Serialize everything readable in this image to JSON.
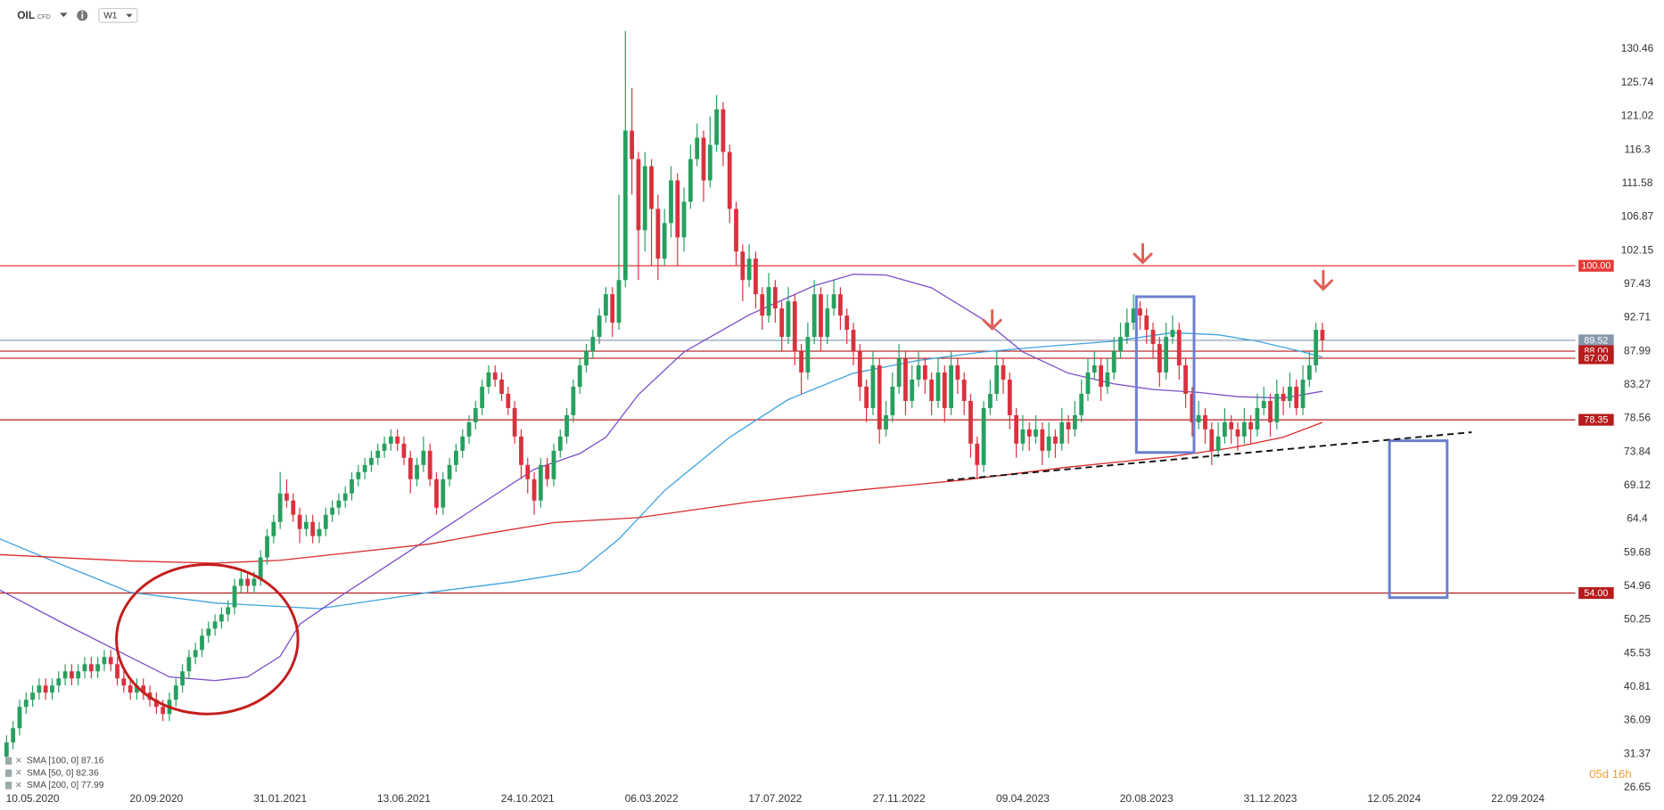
{
  "header": {
    "symbol": "OIL",
    "instrument_type": "CFD",
    "interval": "W1"
  },
  "chart_data": {
    "type": "candlestick",
    "up_color": "#27a05f",
    "down_color": "#d9323f",
    "xlim": [
      -1,
      240
    ],
    "ylim": [
      26.35,
      137.36
    ],
    "xticks": [
      {
        "value": 4,
        "label": "10.05.2020"
      },
      {
        "value": 23,
        "label": "20.09.2020"
      },
      {
        "value": 42,
        "label": "31.01.2021"
      },
      {
        "value": 61,
        "label": "13.06.2021"
      },
      {
        "value": 80,
        "label": "24.10.2021"
      },
      {
        "value": 99,
        "label": "06.03.2022"
      },
      {
        "value": 118,
        "label": "17.07.2022"
      },
      {
        "value": 137,
        "label": "27.11.2022"
      },
      {
        "value": 156,
        "label": "09.04.2023"
      },
      {
        "value": 175,
        "label": "20.08.2023"
      },
      {
        "value": 194,
        "label": "31.12.2023"
      },
      {
        "value": 213,
        "label": "12.05.2024"
      },
      {
        "value": 232,
        "label": "22.09.2024"
      }
    ],
    "yticks": [
      130.46,
      125.74,
      121.02,
      116.3,
      111.58,
      106.87,
      102.15,
      97.43,
      92.71,
      87.99,
      83.27,
      78.56,
      73.84,
      69.12,
      64.4,
      59.68,
      54.96,
      50.25,
      45.53,
      40.81,
      36.09,
      31.37,
      26.65
    ],
    "candles": [
      [
        31,
        34,
        30,
        33
      ],
      [
        33,
        36,
        32,
        35
      ],
      [
        35,
        39,
        34,
        38
      ],
      [
        38,
        40,
        37,
        39
      ],
      [
        39,
        41,
        38,
        40
      ],
      [
        40,
        42,
        39,
        41
      ],
      [
        41,
        42,
        39,
        40
      ],
      [
        40,
        42,
        39,
        41
      ],
      [
        41,
        43,
        40,
        42
      ],
      [
        42,
        44,
        41,
        43
      ],
      [
        43,
        44,
        41,
        42
      ],
      [
        42,
        44,
        41,
        43
      ],
      [
        43,
        45,
        42,
        44
      ],
      [
        44,
        45,
        42,
        43
      ],
      [
        43,
        45,
        42,
        44
      ],
      [
        44,
        46,
        43,
        45
      ],
      [
        45,
        46,
        43,
        44
      ],
      [
        44,
        45,
        41,
        42
      ],
      [
        42,
        43,
        40,
        41
      ],
      [
        41,
        42,
        39,
        40
      ],
      [
        40,
        42,
        39,
        41
      ],
      [
        41,
        42,
        39,
        40
      ],
      [
        40,
        41,
        38,
        39
      ],
      [
        39,
        40,
        37,
        38
      ],
      [
        38,
        39,
        36,
        37
      ],
      [
        37,
        40,
        36,
        39
      ],
      [
        39,
        42,
        38,
        41
      ],
      [
        41,
        44,
        40,
        43
      ],
      [
        43,
        46,
        42,
        45
      ],
      [
        45,
        47,
        44,
        46
      ],
      [
        46,
        49,
        45,
        48
      ],
      [
        48,
        50,
        47,
        49
      ],
      [
        49,
        51,
        48,
        50
      ],
      [
        50,
        52,
        49,
        51
      ],
      [
        51,
        53,
        50,
        52
      ],
      [
        52,
        56,
        51,
        55
      ],
      [
        55,
        57,
        54,
        56
      ],
      [
        56,
        57,
        54,
        55
      ],
      [
        55,
        57,
        54,
        56
      ],
      [
        56,
        60,
        55,
        59
      ],
      [
        59,
        63,
        58,
        62
      ],
      [
        62,
        65,
        61,
        64
      ],
      [
        64,
        71,
        63,
        68
      ],
      [
        68,
        70,
        66,
        67
      ],
      [
        67,
        68,
        64,
        65
      ],
      [
        65,
        66,
        61,
        63
      ],
      [
        63,
        65,
        62,
        64
      ],
      [
        64,
        65,
        61,
        62
      ],
      [
        62,
        64,
        61,
        63
      ],
      [
        63,
        66,
        62,
        65
      ],
      [
        65,
        67,
        64,
        66
      ],
      [
        66,
        68,
        65,
        67
      ],
      [
        67,
        69,
        66,
        68
      ],
      [
        68,
        71,
        67,
        70
      ],
      [
        70,
        72,
        69,
        71
      ],
      [
        71,
        73,
        70,
        72
      ],
      [
        72,
        74,
        71,
        73
      ],
      [
        73,
        75,
        72,
        74
      ],
      [
        74,
        76,
        73,
        75
      ],
      [
        75,
        77,
        74,
        76
      ],
      [
        76,
        77,
        74,
        75
      ],
      [
        75,
        76,
        72,
        73
      ],
      [
        73,
        74,
        68,
        70
      ],
      [
        70,
        73,
        69,
        72
      ],
      [
        72,
        76,
        71,
        74
      ],
      [
        74,
        75,
        69,
        70
      ],
      [
        70,
        71,
        65,
        66
      ],
      [
        66,
        71,
        65,
        70
      ],
      [
        70,
        73,
        69,
        72
      ],
      [
        72,
        75,
        71,
        74
      ],
      [
        74,
        77,
        73,
        76
      ],
      [
        76,
        79,
        75,
        78
      ],
      [
        78,
        81,
        77,
        80
      ],
      [
        80,
        84,
        79,
        83
      ],
      [
        83,
        86,
        82,
        85
      ],
      [
        85,
        86,
        83,
        84
      ],
      [
        84,
        85,
        81,
        82
      ],
      [
        82,
        83,
        79,
        80
      ],
      [
        80,
        81,
        75,
        76
      ],
      [
        76,
        77,
        70,
        72
      ],
      [
        72,
        73,
        68,
        70
      ],
      [
        70,
        71,
        65,
        67
      ],
      [
        67,
        73,
        66,
        72
      ],
      [
        72,
        73,
        69,
        70
      ],
      [
        70,
        75,
        69,
        74
      ],
      [
        74,
        77,
        73,
        76
      ],
      [
        76,
        80,
        75,
        79
      ],
      [
        79,
        84,
        78,
        83
      ],
      [
        83,
        87,
        82,
        86
      ],
      [
        86,
        89,
        85,
        88
      ],
      [
        88,
        91,
        87,
        90
      ],
      [
        90,
        94,
        89,
        93
      ],
      [
        93,
        97,
        92,
        96
      ],
      [
        96,
        97,
        90,
        92
      ],
      [
        92,
        110,
        91,
        98
      ],
      [
        98,
        133,
        97,
        119
      ],
      [
        119,
        125,
        110,
        115
      ],
      [
        115,
        116,
        98,
        105
      ],
      [
        105,
        116,
        102,
        114
      ],
      [
        114,
        115,
        100,
        108
      ],
      [
        108,
        110,
        98,
        101
      ],
      [
        101,
        108,
        100,
        106
      ],
      [
        106,
        114,
        104,
        112
      ],
      [
        112,
        113,
        100,
        104
      ],
      [
        104,
        111,
        102,
        109
      ],
      [
        109,
        117,
        108,
        115
      ],
      [
        115,
        120,
        114,
        118
      ],
      [
        118,
        119,
        109,
        112
      ],
      [
        112,
        121,
        111,
        117
      ],
      [
        117,
        124,
        116,
        122
      ],
      [
        122,
        123,
        114,
        116
      ],
      [
        116,
        117,
        106,
        108
      ],
      [
        108,
        109,
        100,
        102
      ],
      [
        102,
        103,
        95,
        98
      ],
      [
        98,
        103,
        97,
        101
      ],
      [
        101,
        102,
        94,
        96
      ],
      [
        96,
        97,
        91,
        93
      ],
      [
        93,
        99,
        92,
        97
      ],
      [
        97,
        98,
        92,
        94
      ],
      [
        94,
        95,
        88,
        90
      ],
      [
        90,
        97,
        89,
        95
      ],
      [
        95,
        96,
        86,
        88
      ],
      [
        88,
        89,
        82,
        85
      ],
      [
        85,
        92,
        84,
        90
      ],
      [
        90,
        98,
        89,
        96
      ],
      [
        96,
        97,
        88,
        90
      ],
      [
        90,
        96,
        89,
        94
      ],
      [
        94,
        98,
        93,
        96
      ],
      [
        96,
        97,
        91,
        93
      ],
      [
        93,
        94,
        89,
        91
      ],
      [
        91,
        92,
        86,
        88
      ],
      [
        88,
        89,
        81,
        83
      ],
      [
        83,
        84,
        78,
        80
      ],
      [
        80,
        88,
        79,
        86
      ],
      [
        86,
        87,
        75,
        77
      ],
      [
        77,
        81,
        76,
        79
      ],
      [
        79,
        85,
        78,
        83
      ],
      [
        83,
        89,
        82,
        87
      ],
      [
        87,
        88,
        79,
        81
      ],
      [
        81,
        86,
        80,
        84
      ],
      [
        84,
        88,
        83,
        86
      ],
      [
        86,
        87,
        82,
        84
      ],
      [
        84,
        85,
        79,
        81
      ],
      [
        81,
        87,
        80,
        85
      ],
      [
        85,
        86,
        78,
        80
      ],
      [
        80,
        88,
        79,
        86
      ],
      [
        86,
        87,
        82,
        84
      ],
      [
        84,
        85,
        79,
        81
      ],
      [
        81,
        82,
        73,
        75
      ],
      [
        75,
        76,
        70,
        72
      ],
      [
        72,
        81,
        71,
        80
      ],
      [
        80,
        84,
        79,
        82
      ],
      [
        82,
        88,
        81,
        86
      ],
      [
        86,
        87,
        82,
        84
      ],
      [
        84,
        85,
        77,
        79
      ],
      [
        79,
        80,
        73,
        75
      ],
      [
        75,
        79,
        74,
        77
      ],
      [
        77,
        78,
        74,
        76
      ],
      [
        76,
        79,
        75,
        77
      ],
      [
        77,
        78,
        72,
        74
      ],
      [
        74,
        78,
        73,
        76
      ],
      [
        76,
        77,
        73,
        75
      ],
      [
        75,
        80,
        74,
        78
      ],
      [
        78,
        79,
        75,
        77
      ],
      [
        77,
        81,
        76,
        79
      ],
      [
        79,
        84,
        78,
        82
      ],
      [
        82,
        87,
        81,
        85
      ],
      [
        85,
        88,
        84,
        86
      ],
      [
        86,
        87,
        81,
        83
      ],
      [
        83,
        87,
        82,
        85
      ],
      [
        85,
        90,
        84,
        88
      ],
      [
        88,
        92,
        87,
        90
      ],
      [
        90,
        94,
        89,
        92
      ],
      [
        92,
        96,
        91,
        94
      ],
      [
        94,
        95,
        91,
        93
      ],
      [
        93,
        94,
        89,
        91
      ],
      [
        91,
        92,
        87,
        89
      ],
      [
        89,
        90,
        83,
        85
      ],
      [
        85,
        92,
        84,
        90
      ],
      [
        90,
        93,
        89,
        91
      ],
      [
        91,
        92,
        84,
        86
      ],
      [
        86,
        87,
        80,
        82
      ],
      [
        82,
        83,
        76,
        78
      ],
      [
        78,
        81,
        77,
        79
      ],
      [
        79,
        80,
        75,
        77
      ],
      [
        77,
        78,
        72,
        74
      ],
      [
        74,
        78,
        73,
        76
      ],
      [
        76,
        80,
        75,
        78
      ],
      [
        78,
        79,
        75,
        77
      ],
      [
        77,
        78,
        74,
        76
      ],
      [
        76,
        80,
        75,
        78
      ],
      [
        78,
        79,
        75,
        77
      ],
      [
        77,
        82,
        76,
        80
      ],
      [
        80,
        83,
        79,
        81
      ],
      [
        81,
        82,
        76,
        78
      ],
      [
        78,
        84,
        77,
        82
      ],
      [
        82,
        83,
        79,
        81
      ],
      [
        81,
        85,
        80,
        83
      ],
      [
        83,
        84,
        79,
        80
      ],
      [
        80,
        86,
        79,
        84
      ],
      [
        84,
        88,
        83,
        86
      ],
      [
        86,
        92,
        85,
        91
      ],
      [
        91,
        92,
        88,
        89.52
      ]
    ],
    "series": [
      {
        "name": "SMA [100, 0] 87.16",
        "color": "#3fa4e0",
        "x": [
          -1,
          9,
          19,
          32,
          48,
          65,
          78,
          88,
          94,
          101,
          111,
          120,
          130,
          140,
          150,
          160,
          170,
          179,
          186,
          192,
          199,
          202
        ],
        "values": [
          61.6,
          57.8,
          54.1,
          52.6,
          51.8,
          54.1,
          55.6,
          57.1,
          61.6,
          68.4,
          75.9,
          81.2,
          84.9,
          86.7,
          87.9,
          88.7,
          89.4,
          90.6,
          90.3,
          89.4,
          87.9,
          87.16
        ]
      },
      {
        "name": "SMA [50, 0] 82.36",
        "color": "#7b4fc9",
        "x": [
          -1,
          9,
          17,
          25,
          32,
          37,
          42,
          45,
          51,
          61,
          71,
          81,
          88,
          92,
          97,
          104,
          114,
          124,
          130,
          135,
          142,
          150,
          156,
          163,
          170,
          176,
          183,
          189,
          196,
          202
        ],
        "values": [
          54.4,
          49.6,
          45.9,
          42.2,
          41.7,
          42.2,
          45.1,
          49.6,
          53.4,
          59.4,
          65.4,
          71.4,
          73.6,
          75.9,
          81.9,
          87.9,
          93.1,
          97.2,
          98.8,
          98.7,
          96.9,
          92.4,
          87.9,
          84.9,
          83.4,
          82.6,
          82.2,
          81.6,
          81.4,
          82.36
        ]
      },
      {
        "name": "SMA [200, 0] 77.99",
        "color": "#d92b2b",
        "x": [
          -1,
          19,
          32,
          42,
          53,
          65,
          74,
          84,
          97,
          114,
          130,
          147,
          163,
          179,
          188,
          196,
          202
        ],
        "values": [
          59.4,
          58.5,
          58.2,
          58.6,
          59.7,
          60.9,
          62.4,
          63.9,
          64.6,
          66.8,
          68.4,
          69.9,
          71.7,
          73.2,
          74.4,
          75.9,
          77.99
        ]
      }
    ],
    "levels": [
      {
        "value": 100,
        "label": "100.00",
        "color": "#e53935"
      },
      {
        "value": 89.52,
        "label": "89.52",
        "color": "#8797ab"
      },
      {
        "value": 88,
        "label": "88.00",
        "color": "#b71c1c"
      },
      {
        "value": 87,
        "label": "87.00",
        "color": "#b71c1c"
      },
      {
        "value": 78.35,
        "label": "78.35",
        "color": "#b71c1c"
      },
      {
        "value": 54,
        "label": "54.00",
        "color": "#b71c1c"
      }
    ],
    "countdown": "05d 16h"
  }
}
